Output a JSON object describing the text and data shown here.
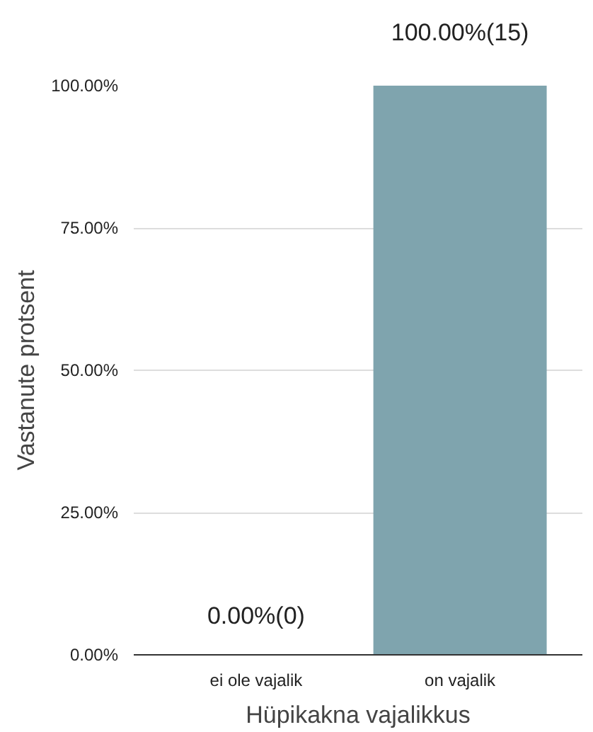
{
  "chart_data": {
    "type": "bar",
    "categories": [
      "ei ole vajalik",
      "on vajalik"
    ],
    "values": [
      0,
      100
    ],
    "value_labels": [
      "0.00%(0)",
      "100.00%(15)"
    ],
    "color": "#7fa4ae",
    "xlabel": "Hüpikakna vajalikkus",
    "ylabel": "Vastanute protsent",
    "ylim": [
      0,
      100
    ],
    "yticks": [
      {
        "value": 0,
        "label": "0.00%"
      },
      {
        "value": 25,
        "label": "25.00%"
      },
      {
        "value": 50,
        "label": "50.00%"
      },
      {
        "value": 75,
        "label": "75.00%"
      },
      {
        "value": 100,
        "label": "100.00%"
      }
    ],
    "grid": "y"
  }
}
